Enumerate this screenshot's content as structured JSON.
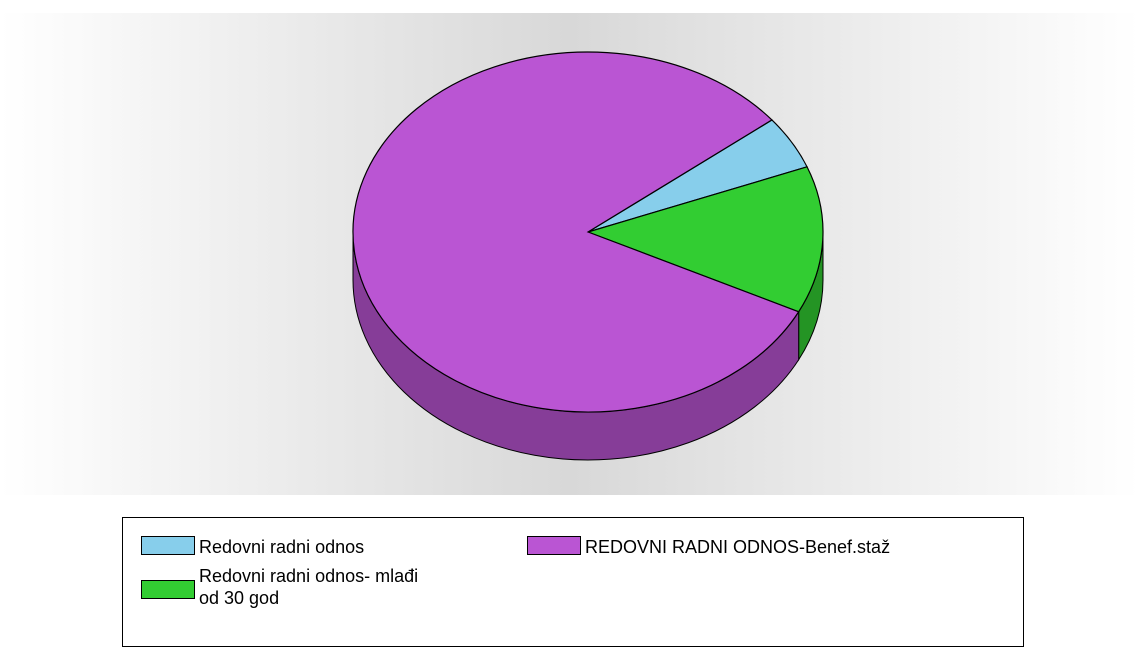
{
  "chart_data": {
    "type": "pie",
    "title": "",
    "series": [
      {
        "name": "Redovni radni odnos",
        "value": 4.8,
        "color": "#87CEEB"
      },
      {
        "name": "Redovni radni odnos- mlađi od 30 god",
        "value": 13.2,
        "color": "#32CD32"
      },
      {
        "name": "REDOVNI RADNI ODNOS-Benef.staž",
        "value": 82.0,
        "color": "#BA55D3"
      }
    ],
    "style": "3d",
    "legend": "bottom"
  },
  "legend": {
    "items": [
      {
        "label": "Redovni radni odnos",
        "color": "#87CEEB"
      },
      {
        "label": "Redovni radni odnos- mlađi\nod 30 god",
        "color": "#32CD32"
      },
      {
        "label": "REDOVNI RADNI ODNOS-Benef.staž",
        "color": "#BA55D3"
      }
    ]
  }
}
